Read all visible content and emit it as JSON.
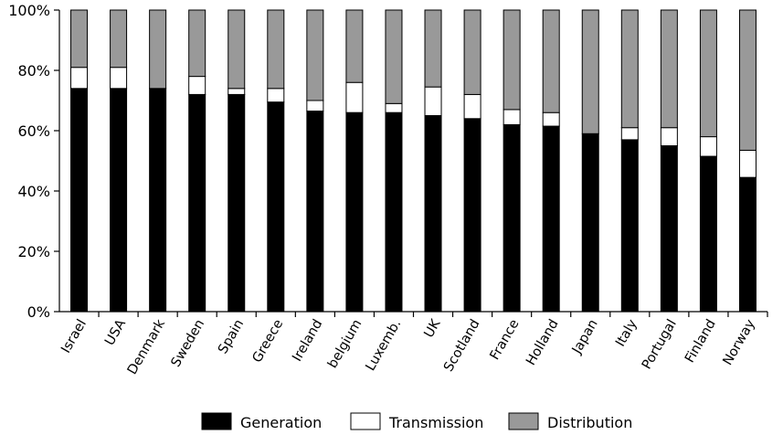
{
  "chart_data": {
    "type": "bar",
    "stacked": true,
    "title": "",
    "xlabel": "",
    "ylabel": "",
    "ylim": [
      0,
      100
    ],
    "yticks": [
      "0%",
      "20%",
      "40%",
      "60%",
      "80%",
      "100%"
    ],
    "grid": false,
    "legend_position": "bottom",
    "categories": [
      "Israel",
      "USA",
      "Denmark",
      "Sweden",
      "Spain",
      "Greece",
      "Ireland",
      "belgium",
      "Luxemb.",
      "UK",
      "Scotland",
      "France",
      "Holland",
      "Japan",
      "Italy",
      "Portugal",
      "Finland",
      "Norway"
    ],
    "series": [
      {
        "name": "Generation",
        "color": "#000000",
        "values": [
          74,
          74,
          74,
          72,
          72,
          69.5,
          66.5,
          66,
          66,
          65,
          64,
          62,
          61.5,
          59,
          57,
          55,
          51.5,
          44.5
        ]
      },
      {
        "name": "Transmission",
        "color": "#ffffff",
        "values": [
          7,
          7,
          0,
          6,
          2,
          4.5,
          3.5,
          10,
          3,
          9.5,
          8,
          5,
          4.5,
          0,
          4,
          6,
          6.5,
          9
        ]
      },
      {
        "name": "Distribution",
        "color": "#999999",
        "values": [
          19,
          19,
          26,
          22,
          26,
          26,
          30,
          24,
          31,
          25.5,
          28,
          33,
          34,
          41,
          39,
          39,
          42,
          46.5
        ]
      }
    ]
  }
}
